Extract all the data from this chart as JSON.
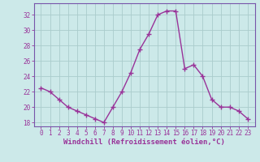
{
  "x": [
    0,
    1,
    2,
    3,
    4,
    5,
    6,
    7,
    8,
    9,
    10,
    11,
    12,
    13,
    14,
    15,
    16,
    17,
    18,
    19,
    20,
    21,
    22,
    23
  ],
  "y": [
    22.5,
    22,
    21,
    20,
    19.5,
    19,
    18.5,
    18,
    20,
    22,
    24.5,
    27.5,
    29.5,
    32,
    32.5,
    32.5,
    25,
    25.5,
    24,
    21,
    20,
    20,
    19.5,
    18.5
  ],
  "line_color": "#993399",
  "marker": "+",
  "marker_size": 4,
  "bg_color": "#cce9e9",
  "grid_color": "#aacccc",
  "xlabel": "Windchill (Refroidissement éolien,°C)",
  "xlabel_fontsize": 6.5,
  "ylim": [
    17.5,
    33.5
  ],
  "yticks": [
    18,
    20,
    22,
    24,
    26,
    28,
    30,
    32
  ],
  "xticks": [
    0,
    1,
    2,
    3,
    4,
    5,
    6,
    7,
    8,
    9,
    10,
    11,
    12,
    13,
    14,
    15,
    16,
    17,
    18,
    19,
    20,
    21,
    22,
    23
  ],
  "tick_fontsize": 5.5,
  "line_width": 1.0,
  "spine_color": "#7755aa",
  "axis_color": "#7755aa"
}
